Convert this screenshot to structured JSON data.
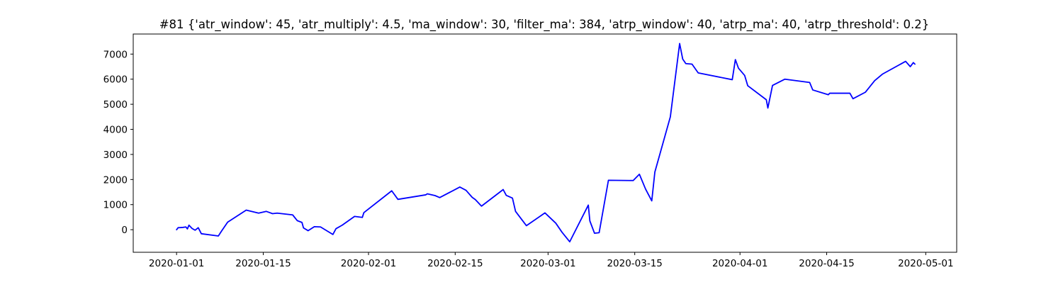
{
  "chart_data": {
    "type": "line",
    "title": "#81 {'atr_window': 45, 'atr_multiply': 4.5, 'ma_window': 30, 'filter_ma': 384, 'atrp_window': 40, 'atrp_ma': 40, 'atrp_threshold': 0.2}",
    "xlabel": "",
    "ylabel": "",
    "xlim": [
      "2019-12-25",
      "2020-05-06"
    ],
    "ylim": [
      -900,
      7800
    ],
    "x_ticks": [
      "2020-01-01",
      "2020-01-15",
      "2020-02-01",
      "2020-02-15",
      "2020-03-01",
      "2020-03-15",
      "2020-04-01",
      "2020-04-15",
      "2020-05-01"
    ],
    "y_ticks": [
      0,
      1000,
      2000,
      3000,
      4000,
      5000,
      6000,
      7000
    ],
    "grid": false,
    "series": [
      {
        "color": "#0000ff",
        "points": [
          [
            "2020-01-01 00:00",
            0
          ],
          [
            "2020-01-01 06:00",
            80
          ],
          [
            "2020-01-02 00:00",
            90
          ],
          [
            "2020-01-02 12:00",
            110
          ],
          [
            "2020-01-02 18:00",
            30
          ],
          [
            "2020-01-03 00:00",
            180
          ],
          [
            "2020-01-03 12:00",
            50
          ],
          [
            "2020-01-04 00:00",
            -20
          ],
          [
            "2020-01-04 12:00",
            80
          ],
          [
            "2020-01-05 00:00",
            -160
          ],
          [
            "2020-01-07 18:00",
            -250
          ],
          [
            "2020-01-08 06:00",
            -60
          ],
          [
            "2020-01-09 06:00",
            300
          ],
          [
            "2020-01-12 06:00",
            780
          ],
          [
            "2020-01-14 06:00",
            660
          ],
          [
            "2020-01-15 12:00",
            730
          ],
          [
            "2020-01-16 12:00",
            640
          ],
          [
            "2020-01-17 06:00",
            660
          ],
          [
            "2020-01-19 18:00",
            590
          ],
          [
            "2020-01-20 12:00",
            360
          ],
          [
            "2020-01-21 06:00",
            290
          ],
          [
            "2020-01-21 12:00",
            70
          ],
          [
            "2020-01-22 06:00",
            -40
          ],
          [
            "2020-01-23 06:00",
            120
          ],
          [
            "2020-01-24 06:00",
            110
          ],
          [
            "2020-01-26 06:00",
            -190
          ],
          [
            "2020-01-26 18:00",
            40
          ],
          [
            "2020-01-27 18:00",
            180
          ],
          [
            "2020-01-29 18:00",
            530
          ],
          [
            "2020-01-31 00:00",
            490
          ],
          [
            "2020-01-31 06:00",
            680
          ],
          [
            "2020-02-04 18:00",
            1550
          ],
          [
            "2020-02-05 18:00",
            1210
          ],
          [
            "2020-02-10 06:00",
            1390
          ],
          [
            "2020-02-10 12:00",
            1430
          ],
          [
            "2020-02-11 18:00",
            1360
          ],
          [
            "2020-02-12 12:00",
            1280
          ],
          [
            "2020-02-15 18:00",
            1700
          ],
          [
            "2020-02-16 18:00",
            1570
          ],
          [
            "2020-02-17 18:00",
            1290
          ],
          [
            "2020-02-18 06:00",
            1200
          ],
          [
            "2020-02-19 06:00",
            940
          ],
          [
            "2020-02-22 18:00",
            1600
          ],
          [
            "2020-02-23 06:00",
            1370
          ],
          [
            "2020-02-24 06:00",
            1260
          ],
          [
            "2020-02-24 18:00",
            730
          ],
          [
            "2020-02-26 12:00",
            160
          ],
          [
            "2020-02-29 12:00",
            670
          ],
          [
            "2020-03-02 06:00",
            260
          ],
          [
            "2020-03-03 06:00",
            -100
          ],
          [
            "2020-03-04 12:00",
            -480
          ],
          [
            "2020-03-07 12:00",
            980
          ],
          [
            "2020-03-07 18:00",
            350
          ],
          [
            "2020-03-08 12:00",
            -140
          ],
          [
            "2020-03-09 06:00",
            -120
          ],
          [
            "2020-03-10 18:00",
            1970
          ],
          [
            "2020-03-14 18:00",
            1960
          ],
          [
            "2020-03-15 18:00",
            2210
          ],
          [
            "2020-03-16 18:00",
            1620
          ],
          [
            "2020-03-17 18:00",
            1150
          ],
          [
            "2020-03-18 06:00",
            2300
          ],
          [
            "2020-03-20 18:00",
            4500
          ],
          [
            "2020-03-22 06:00",
            7420
          ],
          [
            "2020-03-22 18:00",
            6800
          ],
          [
            "2020-03-23 06:00",
            6620
          ],
          [
            "2020-03-24 06:00",
            6600
          ],
          [
            "2020-03-25 06:00",
            6250
          ],
          [
            "2020-03-30 18:00",
            5980
          ],
          [
            "2020-03-31 06:00",
            6780
          ],
          [
            "2020-03-31 18:00",
            6440
          ],
          [
            "2020-04-01 18:00",
            6150
          ],
          [
            "2020-04-02 06:00",
            5740
          ],
          [
            "2020-04-05 06:00",
            5180
          ],
          [
            "2020-04-05 12:00",
            4850
          ],
          [
            "2020-04-06 06:00",
            5750
          ],
          [
            "2020-04-08 06:00",
            6000
          ],
          [
            "2020-04-12 06:00",
            5870
          ],
          [
            "2020-04-12 18:00",
            5570
          ],
          [
            "2020-04-15 06:00",
            5380
          ],
          [
            "2020-04-15 12:00",
            5440
          ],
          [
            "2020-04-18 18:00",
            5440
          ],
          [
            "2020-04-19 06:00",
            5220
          ],
          [
            "2020-04-21 06:00",
            5480
          ],
          [
            "2020-04-22 18:00",
            5940
          ],
          [
            "2020-04-24 00:00",
            6200
          ],
          [
            "2020-04-27 18:00",
            6710
          ],
          [
            "2020-04-28 12:00",
            6500
          ],
          [
            "2020-04-29 00:00",
            6660
          ],
          [
            "2020-04-29 06:00",
            6600
          ]
        ]
      }
    ]
  }
}
